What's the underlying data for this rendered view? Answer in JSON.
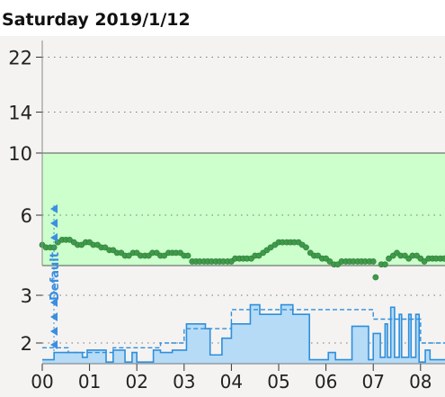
{
  "header": {
    "title": "Saturday 2019/1/12"
  },
  "profile_label": "Default",
  "colors": {
    "background": "#f4f3f1",
    "target_range_fill": "#ccffcc",
    "glucose_point": "#3f9a4a",
    "glucose_point_edge": "#2f7d39",
    "basal_line": "#2f8fdc",
    "basal_fill": "#b6dbf6",
    "basal_fill_light": "#dbecf8",
    "profile_label": "#3a8fe0"
  },
  "chart_data": [
    {
      "type": "scatter",
      "name": "glucose",
      "ylim": [
        2,
        25
      ],
      "y_scale": "log",
      "target_range": [
        4,
        10
      ],
      "grid": true,
      "yticks": [
        6,
        10,
        14,
        22
      ],
      "x_domain_hours": [
        0,
        8.55
      ],
      "points": [
        [
          0.0,
          4.7
        ],
        [
          0.08,
          4.6
        ],
        [
          0.17,
          4.6
        ],
        [
          0.25,
          4.6
        ],
        [
          0.33,
          4.8
        ],
        [
          0.42,
          4.9
        ],
        [
          0.5,
          4.9
        ],
        [
          0.58,
          4.9
        ],
        [
          0.67,
          4.8
        ],
        [
          0.75,
          4.7
        ],
        [
          0.83,
          4.7
        ],
        [
          0.92,
          4.8
        ],
        [
          1.0,
          4.8
        ],
        [
          1.08,
          4.7
        ],
        [
          1.17,
          4.7
        ],
        [
          1.25,
          4.6
        ],
        [
          1.33,
          4.6
        ],
        [
          1.42,
          4.5
        ],
        [
          1.5,
          4.5
        ],
        [
          1.58,
          4.4
        ],
        [
          1.67,
          4.4
        ],
        [
          1.75,
          4.3
        ],
        [
          1.83,
          4.3
        ],
        [
          1.92,
          4.4
        ],
        [
          2.0,
          4.4
        ],
        [
          2.08,
          4.3
        ],
        [
          2.17,
          4.3
        ],
        [
          2.25,
          4.3
        ],
        [
          2.33,
          4.4
        ],
        [
          2.42,
          4.4
        ],
        [
          2.5,
          4.3
        ],
        [
          2.58,
          4.3
        ],
        [
          2.67,
          4.4
        ],
        [
          2.75,
          4.4
        ],
        [
          2.83,
          4.4
        ],
        [
          2.92,
          4.4
        ],
        [
          3.0,
          4.3
        ],
        [
          3.08,
          4.3
        ],
        [
          3.17,
          4.1
        ],
        [
          3.25,
          4.1
        ],
        [
          3.33,
          4.1
        ],
        [
          3.42,
          4.1
        ],
        [
          3.5,
          4.1
        ],
        [
          3.58,
          4.1
        ],
        [
          3.67,
          4.1
        ],
        [
          3.75,
          4.1
        ],
        [
          3.83,
          4.1
        ],
        [
          3.92,
          4.1
        ],
        [
          4.0,
          4.1
        ],
        [
          4.08,
          4.2
        ],
        [
          4.17,
          4.2
        ],
        [
          4.25,
          4.2
        ],
        [
          4.33,
          4.2
        ],
        [
          4.42,
          4.2
        ],
        [
          4.5,
          4.3
        ],
        [
          4.58,
          4.3
        ],
        [
          4.67,
          4.4
        ],
        [
          4.75,
          4.5
        ],
        [
          4.83,
          4.6
        ],
        [
          4.92,
          4.7
        ],
        [
          5.0,
          4.8
        ],
        [
          5.08,
          4.8
        ],
        [
          5.17,
          4.8
        ],
        [
          5.25,
          4.8
        ],
        [
          5.33,
          4.8
        ],
        [
          5.42,
          4.8
        ],
        [
          5.5,
          4.7
        ],
        [
          5.58,
          4.6
        ],
        [
          5.67,
          4.4
        ],
        [
          5.75,
          4.3
        ],
        [
          5.83,
          4.3
        ],
        [
          5.92,
          4.2
        ],
        [
          6.0,
          4.2
        ],
        [
          6.08,
          4.1
        ],
        [
          6.17,
          4.0
        ],
        [
          6.25,
          4.0
        ],
        [
          6.33,
          4.1
        ],
        [
          6.42,
          4.1
        ],
        [
          6.5,
          4.1
        ],
        [
          6.58,
          4.1
        ],
        [
          6.67,
          4.1
        ],
        [
          6.75,
          4.1
        ],
        [
          6.83,
          4.1
        ],
        [
          6.92,
          4.1
        ],
        [
          7.0,
          4.1
        ],
        [
          7.05,
          3.6
        ],
        [
          7.17,
          4.0
        ],
        [
          7.25,
          4.0
        ],
        [
          7.33,
          4.2
        ],
        [
          7.42,
          4.3
        ],
        [
          7.5,
          4.4
        ],
        [
          7.58,
          4.3
        ],
        [
          7.67,
          4.3
        ],
        [
          7.75,
          4.2
        ],
        [
          7.83,
          4.3
        ],
        [
          7.92,
          4.3
        ],
        [
          8.0,
          4.2
        ],
        [
          8.08,
          4.1
        ],
        [
          8.17,
          4.2
        ],
        [
          8.25,
          4.2
        ],
        [
          8.33,
          4.2
        ],
        [
          8.42,
          4.2
        ],
        [
          8.5,
          4.2
        ]
      ]
    },
    {
      "type": "area",
      "name": "basal",
      "ylim": [
        1.55,
        3.2
      ],
      "yticks": [
        2,
        3
      ],
      "x_domain_hours": [
        0,
        8.55
      ],
      "xticks": [
        "00",
        "01",
        "02",
        "03",
        "04",
        "05",
        "06",
        "07",
        "08"
      ],
      "scheduled": [
        [
          0,
          1.9
        ],
        [
          0.55,
          1.8
        ],
        [
          1.5,
          1.9
        ],
        [
          2.5,
          2.0
        ],
        [
          3.0,
          2.3
        ],
        [
          4.0,
          2.7
        ],
        [
          7.0,
          2.5
        ],
        [
          8.0,
          2.0
        ],
        [
          8.55,
          2.0
        ]
      ],
      "actual": [
        [
          0,
          1.65
        ],
        [
          0.25,
          1.8
        ],
        [
          0.85,
          1.7
        ],
        [
          0.95,
          1.85
        ],
        [
          1.35,
          1.6
        ],
        [
          1.5,
          1.85
        ],
        [
          1.75,
          1.6
        ],
        [
          1.9,
          1.8
        ],
        [
          2.0,
          1.6
        ],
        [
          2.35,
          1.85
        ],
        [
          2.5,
          1.8
        ],
        [
          2.75,
          1.85
        ],
        [
          3.05,
          2.4
        ],
        [
          3.45,
          2.3
        ],
        [
          3.55,
          1.75
        ],
        [
          3.8,
          2.1
        ],
        [
          4.0,
          2.4
        ],
        [
          4.4,
          2.8
        ],
        [
          4.6,
          2.6
        ],
        [
          5.05,
          2.8
        ],
        [
          5.3,
          2.6
        ],
        [
          5.65,
          1.65
        ],
        [
          6.05,
          1.8
        ],
        [
          6.2,
          1.65
        ],
        [
          6.55,
          2.35
        ],
        [
          6.9,
          1.65
        ],
        [
          7.0,
          2.2
        ],
        [
          7.15,
          1.7
        ],
        [
          7.25,
          2.4
        ],
        [
          7.3,
          1.7
        ],
        [
          7.37,
          2.75
        ],
        [
          7.45,
          1.7
        ],
        [
          7.55,
          2.6
        ],
        [
          7.6,
          1.7
        ],
        [
          7.75,
          2.6
        ],
        [
          7.8,
          1.7
        ],
        [
          7.9,
          2.6
        ],
        [
          7.97,
          1.6
        ],
        [
          8.1,
          1.85
        ],
        [
          8.2,
          1.65
        ],
        [
          8.55,
          1.65
        ]
      ]
    }
  ]
}
